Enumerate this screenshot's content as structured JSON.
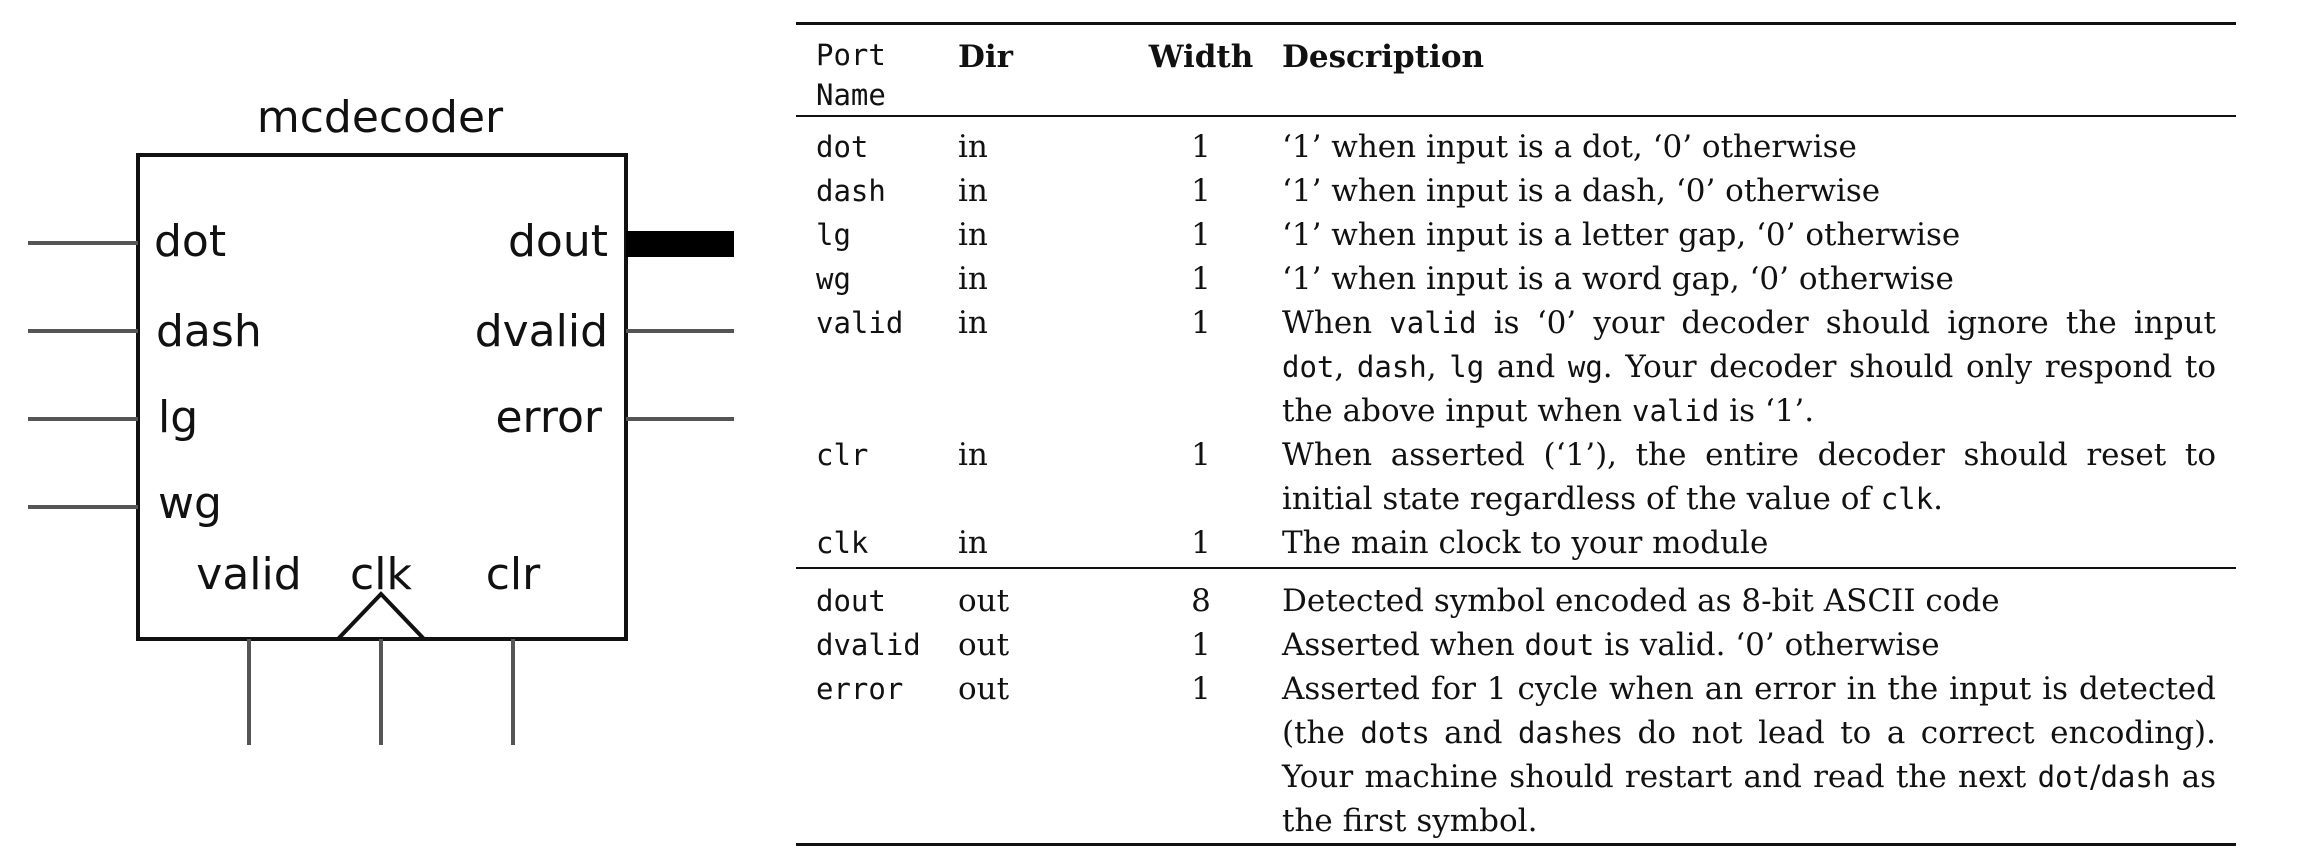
{
  "block": {
    "title": "mcdecoder",
    "left_ports": [
      "dot",
      "dash",
      "lg",
      "wg"
    ],
    "right_ports": [
      "dout",
      "dvalid",
      "error"
    ],
    "bottom_ports": [
      "valid",
      "clk",
      "clr"
    ]
  },
  "table": {
    "headers": {
      "port_name_line1": "Port",
      "port_name_line2": "Name",
      "dir": "Dir",
      "width": "Width",
      "description": "Description"
    },
    "inputs": [
      {
        "name": "dot",
        "dir": "in",
        "width": "1",
        "desc": "‘1’ when input is a dot, ‘0’ otherwise"
      },
      {
        "name": "dash",
        "dir": "in",
        "width": "1",
        "desc": "‘1’ when input is a dash, ‘0’ otherwise"
      },
      {
        "name": "lg",
        "dir": "in",
        "width": "1",
        "desc": "‘1’ when input is a letter gap, ‘0’ otherwise"
      },
      {
        "name": "wg",
        "dir": "in",
        "width": "1",
        "desc": "‘1’ when input is a word gap, ‘0’ otherwise"
      },
      {
        "name": "valid",
        "dir": "in",
        "width": "1",
        "desc_parts": {
          "t1": "When ",
          "c1": "valid",
          "t2": " is ‘0’ your decoder should ignore the input ",
          "c2": "dot",
          "t3": ", ",
          "c3": "dash",
          "t4": ", ",
          "c4": "lg",
          "t5": " and ",
          "c5": "wg",
          "t6": ". Your decoder should only respond to the above input when ",
          "c6": "valid",
          "t7": " is ‘1’."
        }
      },
      {
        "name": "clr",
        "dir": "in",
        "width": "1",
        "desc_parts": {
          "t1": "When asserted (‘1’), the entire decoder should reset to initial state regardless of the value of ",
          "c1": "clk",
          "t2": "."
        }
      },
      {
        "name": "clk",
        "dir": "in",
        "width": "1",
        "desc": "The main clock to your module"
      }
    ],
    "outputs": [
      {
        "name": "dout",
        "dir": "out",
        "width": "8",
        "desc": "Detected symbol encoded as 8-bit ASCII code"
      },
      {
        "name": "dvalid",
        "dir": "out",
        "width": "1",
        "desc_parts": {
          "t1": "Asserted when ",
          "c1": "dout",
          "t2": " is valid. ‘0’ otherwise"
        }
      },
      {
        "name": "error",
        "dir": "out",
        "width": "1",
        "desc_parts": {
          "t1": "Asserted for 1 cycle when an error in the input is detected (the ",
          "c1": "dot",
          "t2": "s and ",
          "c2": "dash",
          "t3": "es do not lead to a correct encoding). Your machine should restart and read the next ",
          "c3": "dot",
          "t4": "/",
          "c4": "dash",
          "t5": " as the first symbol."
        }
      }
    ]
  }
}
